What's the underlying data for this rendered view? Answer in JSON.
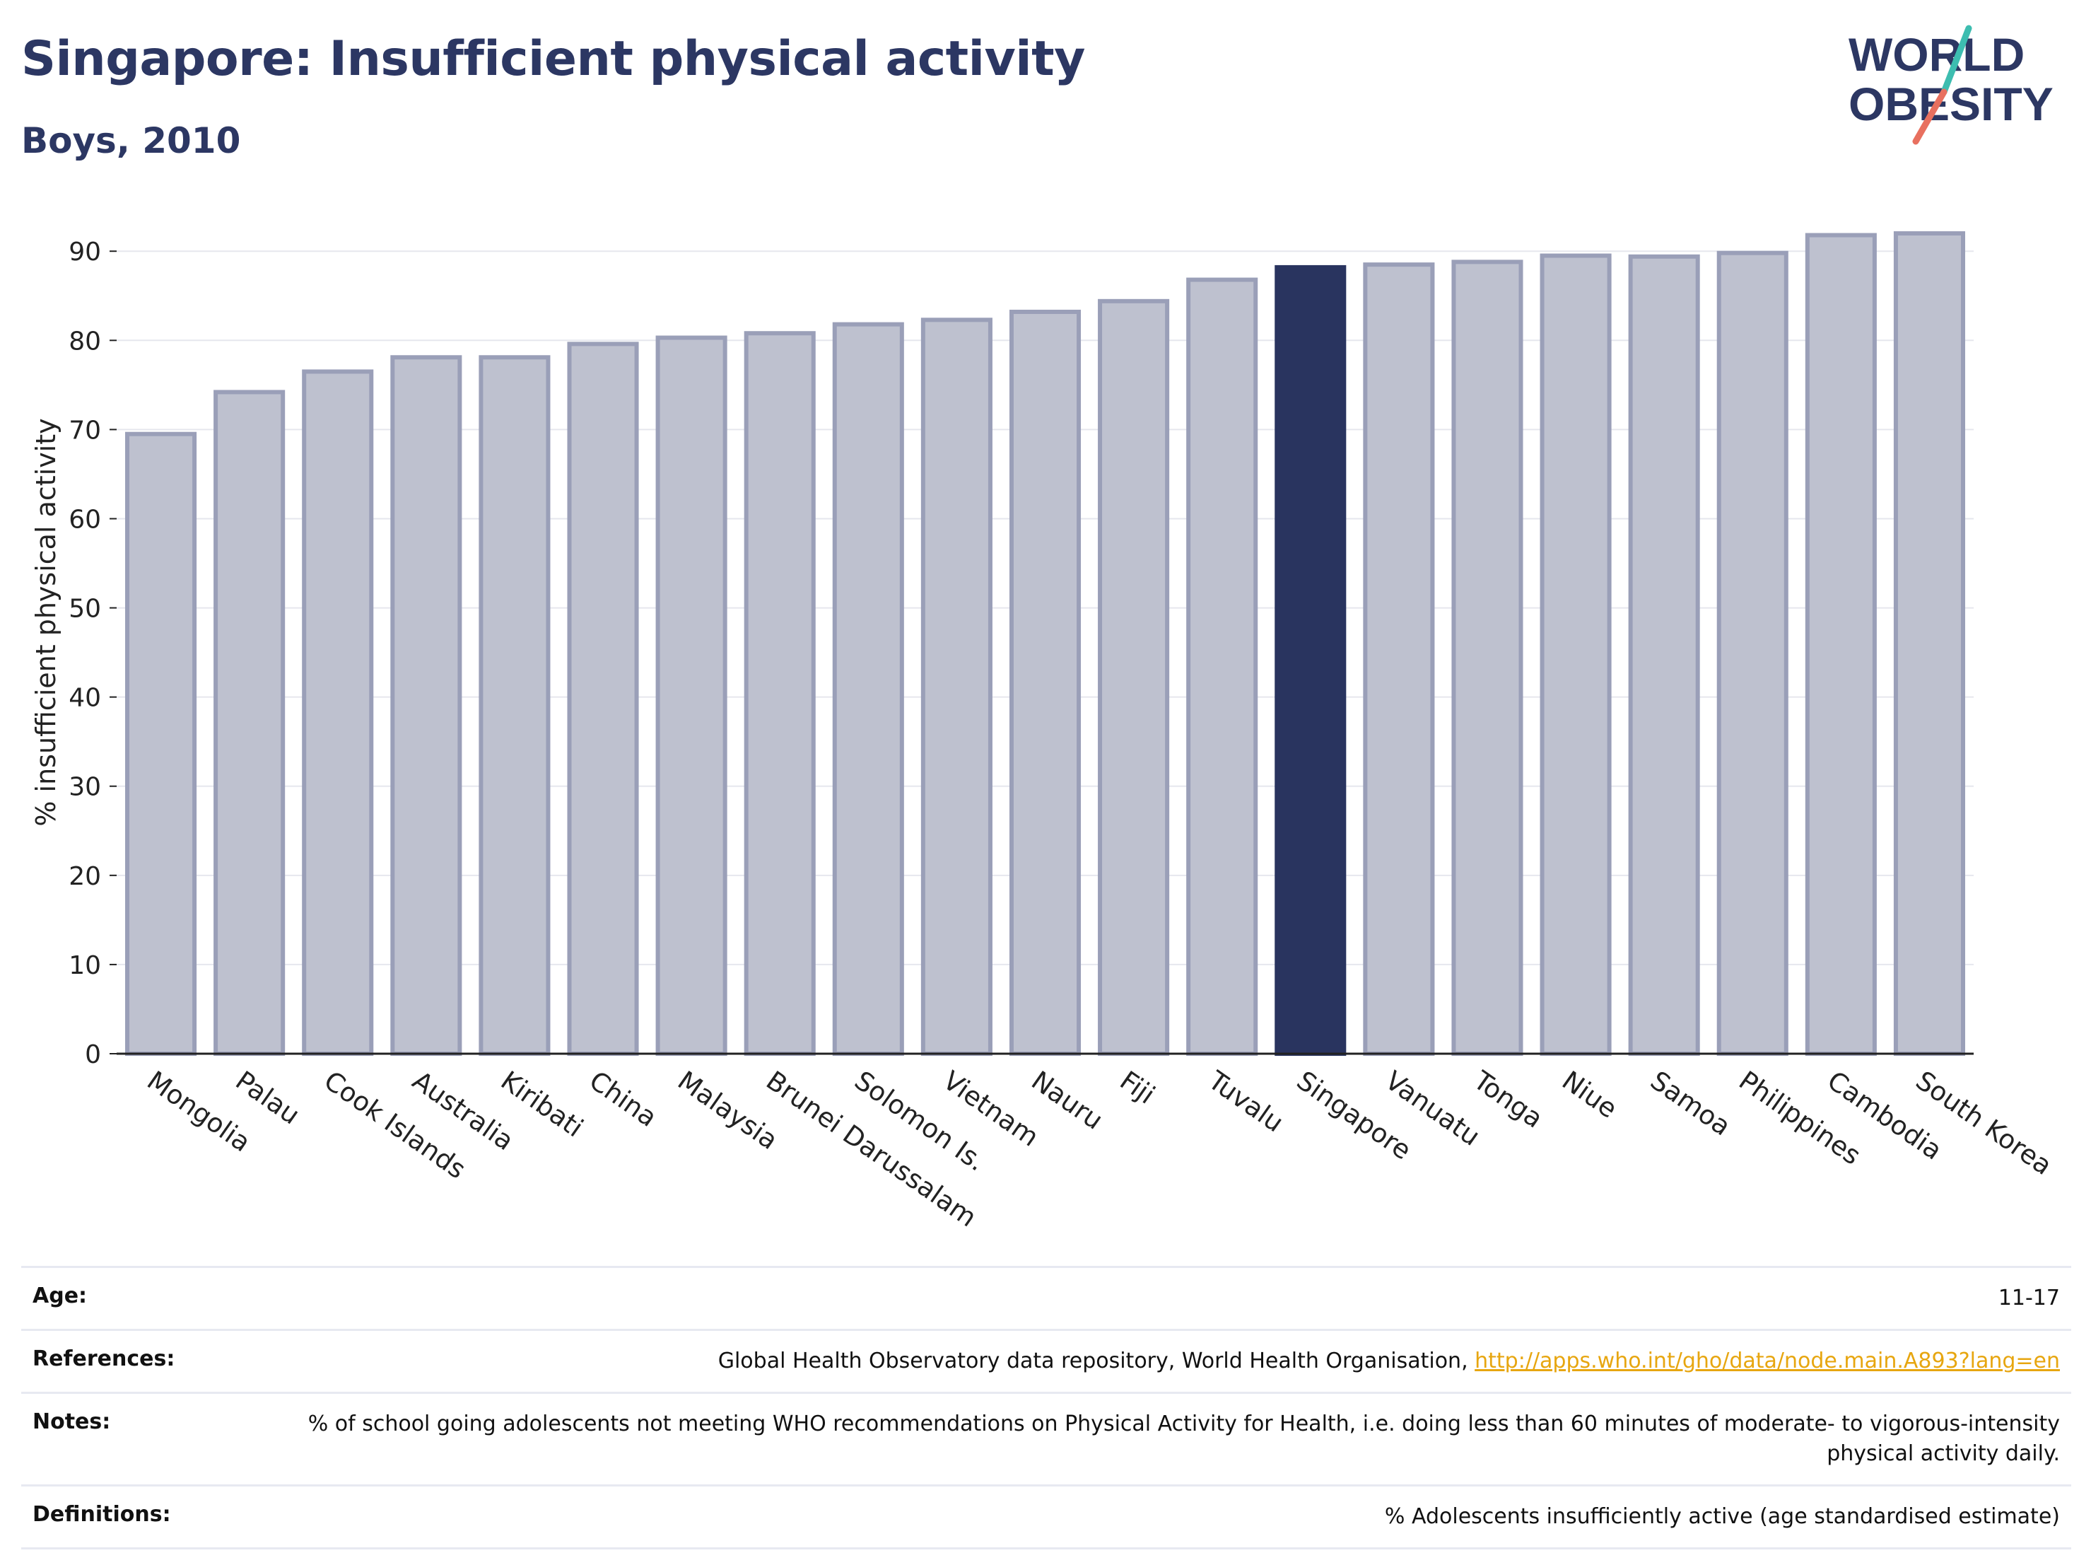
{
  "header": {
    "title": "Singapore: Insufficient physical activity",
    "subtitle": "Boys, 2010"
  },
  "logo": {
    "line1": "WORLD",
    "line2": "OBESITY"
  },
  "colors": {
    "title": "#2c3763",
    "highlight_bar": "#29345f",
    "other_bar_fill": "#bec1cf",
    "other_bar_stroke": "#9a9fb8",
    "logo_teal": "#3dbdb0",
    "logo_coral": "#e8705f",
    "link": "#e7a610"
  },
  "chart_data": {
    "type": "bar",
    "ylabel": "% insufficient physical activity",
    "ylim": [
      0,
      92
    ],
    "yticks": [
      0,
      10,
      20,
      30,
      40,
      50,
      60,
      70,
      80,
      90
    ],
    "grid": true,
    "highlight": "Singapore",
    "categories": [
      "Mongolia",
      "Palau",
      "Cook Islands",
      "Australia",
      "Kiribati",
      "China",
      "Malaysia",
      "Brunei Darussalam",
      "Solomon Is.",
      "Vietnam",
      "Nauru",
      "Fiji",
      "Tuvalu",
      "Singapore",
      "Vanuatu",
      "Tonga",
      "Niue",
      "Samoa",
      "Philippines",
      "Cambodia",
      "South Korea"
    ],
    "values": [
      69.5,
      74.2,
      76.5,
      78.1,
      78.1,
      79.6,
      80.3,
      80.8,
      81.8,
      82.3,
      83.2,
      84.4,
      86.8,
      88.2,
      88.5,
      88.8,
      89.5,
      89.4,
      89.8,
      91.8,
      92.0
    ]
  },
  "meta": {
    "age_label": "Age:",
    "age_value": "11-17",
    "references_label": "References:",
    "references_text": "Global Health Observatory data repository, World Health Organisation, ",
    "references_link": "http://apps.who.int/gho/data/node.main.A893?lang=en",
    "notes_label": "Notes:",
    "notes_text": "% of school going adolescents not meeting WHO recommendations on Physical Activity for Health, i.e. doing less than 60 minutes of moderate- to vigorous-intensity physical activity daily.",
    "definitions_label": "Definitions:",
    "definitions_text": "% Adolescents insufficiently active (age standardised estimate)"
  }
}
